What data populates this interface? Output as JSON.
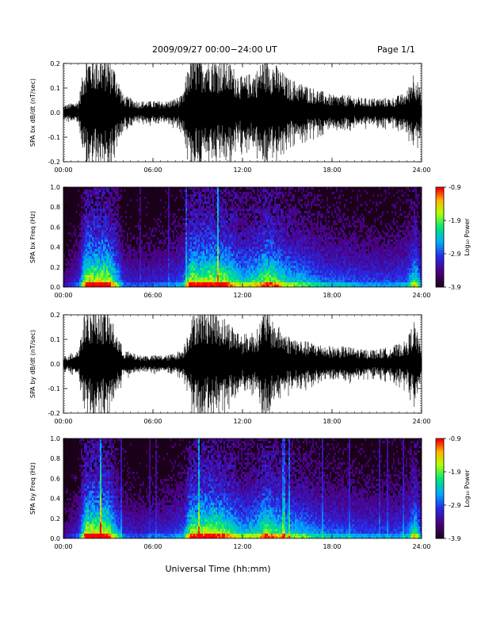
{
  "header": {
    "date_range": "2009/09/27  00:00−24:00 UT",
    "page": "Page 1/1"
  },
  "footer": {
    "xlabel": "Universal Time (hh:mm)"
  },
  "colors": {
    "background": "#ffffff",
    "trace": "#000000",
    "spectrogram_bg": "#1a0019"
  },
  "chart_data": [
    {
      "type": "line",
      "ylabel": "SPA bx dB/dt (nT/sec)",
      "xlim": [
        "00:00",
        "24:00"
      ],
      "ylim": [
        -0.2,
        0.2
      ],
      "xticks": [
        "00:00",
        "06:00",
        "12:00",
        "18:00",
        "24:00"
      ],
      "yticks": [
        "-0.2",
        "-0.1",
        "0.0",
        "0.1",
        "0.2"
      ],
      "series": [
        {
          "x_hours": [
            0,
            1,
            1.5,
            2,
            2.5,
            3,
            3.5,
            4,
            5,
            6,
            7,
            8,
            8.5,
            9,
            10,
            11,
            12,
            13,
            13.5,
            14,
            15,
            16,
            17,
            18,
            19,
            20,
            21,
            22,
            23,
            23.5,
            24
          ],
          "amplitude": [
            0.025,
            0.04,
            0.2,
            0.2,
            0.2,
            0.2,
            0.15,
            0.06,
            0.04,
            0.04,
            0.04,
            0.06,
            0.2,
            0.2,
            0.2,
            0.18,
            0.12,
            0.15,
            0.2,
            0.18,
            0.12,
            0.1,
            0.08,
            0.06,
            0.06,
            0.05,
            0.05,
            0.05,
            0.07,
            0.15,
            0.06
          ]
        }
      ]
    },
    {
      "type": "heatmap",
      "ylabel": "SPA bx Freq (Hz)",
      "colorbar_label": "Log₁₀ Power",
      "colorbar_ticks": [
        "-0.9",
        "-1.9",
        "-2.9",
        "-3.9"
      ],
      "clim": [
        -3.9,
        -0.9
      ],
      "xlim": [
        "00:00",
        "24:00"
      ],
      "ylim": [
        0,
        1
      ],
      "xticks": [
        "00:00",
        "06:00",
        "12:00",
        "18:00",
        "24:00"
      ],
      "yticks": [
        "0.0",
        "0.2",
        "0.4",
        "0.6",
        "0.8",
        "1.0"
      ],
      "activity_hours": [
        0,
        1,
        1.5,
        2,
        2.5,
        3,
        3.5,
        4,
        5,
        6,
        7,
        8,
        8.5,
        9,
        10,
        11,
        12,
        13,
        13.5,
        14,
        15,
        16,
        17,
        18,
        19,
        20,
        21,
        22,
        23,
        23.5,
        24
      ],
      "activity_level": [
        0.15,
        0.3,
        0.95,
        0.9,
        0.95,
        0.9,
        0.6,
        0.3,
        0.25,
        0.3,
        0.3,
        0.4,
        0.9,
        0.85,
        0.9,
        0.8,
        0.6,
        0.7,
        0.85,
        0.8,
        0.6,
        0.55,
        0.45,
        0.4,
        0.4,
        0.35,
        0.35,
        0.35,
        0.4,
        0.7,
        0.3
      ]
    },
    {
      "type": "line",
      "ylabel": "SPA by dB/dt (nT/sec)",
      "xlim": [
        "00:00",
        "24:00"
      ],
      "ylim": [
        -0.2,
        0.2
      ],
      "xticks": [
        "00:00",
        "06:00",
        "12:00",
        "18:00",
        "24:00"
      ],
      "yticks": [
        "-0.2",
        "-0.1",
        "0.0",
        "0.1",
        "0.2"
      ],
      "series": [
        {
          "x_hours": [
            0,
            1,
            1.5,
            2,
            2.5,
            3,
            3.5,
            4,
            5,
            6,
            7,
            8,
            8.5,
            9,
            10,
            11,
            12,
            13,
            13.5,
            14,
            15,
            16,
            17,
            18,
            19,
            20,
            21,
            22,
            23,
            23.5,
            24
          ],
          "amplitude": [
            0.025,
            0.05,
            0.2,
            0.2,
            0.2,
            0.18,
            0.12,
            0.05,
            0.03,
            0.03,
            0.03,
            0.05,
            0.15,
            0.2,
            0.2,
            0.15,
            0.1,
            0.12,
            0.2,
            0.15,
            0.1,
            0.08,
            0.07,
            0.06,
            0.06,
            0.05,
            0.05,
            0.06,
            0.08,
            0.15,
            0.05
          ]
        }
      ]
    },
    {
      "type": "heatmap",
      "ylabel": "SPA by Freq (Hz)",
      "colorbar_label": "Log₁₀ Power",
      "colorbar_ticks": [
        "-0.9",
        "-1.9",
        "-2.9",
        "-3.9"
      ],
      "clim": [
        -3.9,
        -0.9
      ],
      "xlim": [
        "00:00",
        "24:00"
      ],
      "ylim": [
        0,
        1
      ],
      "xticks": [
        "00:00",
        "06:00",
        "12:00",
        "18:00",
        "24:00"
      ],
      "yticks": [
        "0.0",
        "0.2",
        "0.4",
        "0.6",
        "0.8",
        "1.0"
      ],
      "activity_hours": [
        0,
        1,
        1.5,
        2,
        2.5,
        3,
        3.5,
        4,
        5,
        6,
        7,
        8,
        8.5,
        9,
        10,
        11,
        12,
        13,
        13.5,
        14,
        15,
        16,
        17,
        18,
        19,
        20,
        21,
        22,
        23,
        23.5,
        24
      ],
      "activity_level": [
        0.15,
        0.3,
        0.95,
        0.9,
        0.95,
        0.85,
        0.55,
        0.3,
        0.25,
        0.3,
        0.3,
        0.4,
        0.85,
        0.85,
        0.9,
        0.75,
        0.55,
        0.65,
        0.85,
        0.75,
        0.6,
        0.55,
        0.45,
        0.4,
        0.4,
        0.35,
        0.35,
        0.35,
        0.4,
        0.7,
        0.3
      ]
    }
  ]
}
